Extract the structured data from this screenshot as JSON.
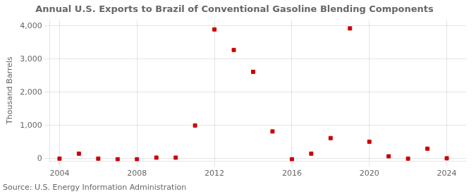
{
  "chart_data": {
    "type": "scatter",
    "title": "Annual U.S. Exports to Brazil of Conventional Gasoline Blending Components",
    "ylabel": "Thousand Barrels",
    "source": "Source: U.S. Energy Information Administration",
    "x": [
      2004,
      2005,
      2006,
      2007,
      2008,
      2009,
      2010,
      2011,
      2012,
      2013,
      2014,
      2015,
      2016,
      2017,
      2018,
      2019,
      2020,
      2021,
      2022,
      2023,
      2024
    ],
    "values": [
      0,
      150,
      0,
      -20,
      -20,
      30,
      30,
      1000,
      3900,
      3280,
      2620,
      820,
      -20,
      150,
      620,
      3930,
      510,
      70,
      0,
      300,
      10
    ],
    "color": "#cc0000",
    "marker": "square",
    "xlim": [
      2003.5,
      2025.0
    ],
    "xticks": [
      2004,
      2008,
      2012,
      2016,
      2020,
      2024
    ],
    "ylim": [
      -80,
      4200
    ],
    "yticks": [
      0,
      {
        "value": 1000,
        "label": "1,000"
      },
      {
        "value": 2000,
        "label": "2,000"
      },
      {
        "value": 3000,
        "label": "3,000"
      },
      {
        "value": 4000,
        "label": "4,000"
      }
    ],
    "grid": true
  }
}
